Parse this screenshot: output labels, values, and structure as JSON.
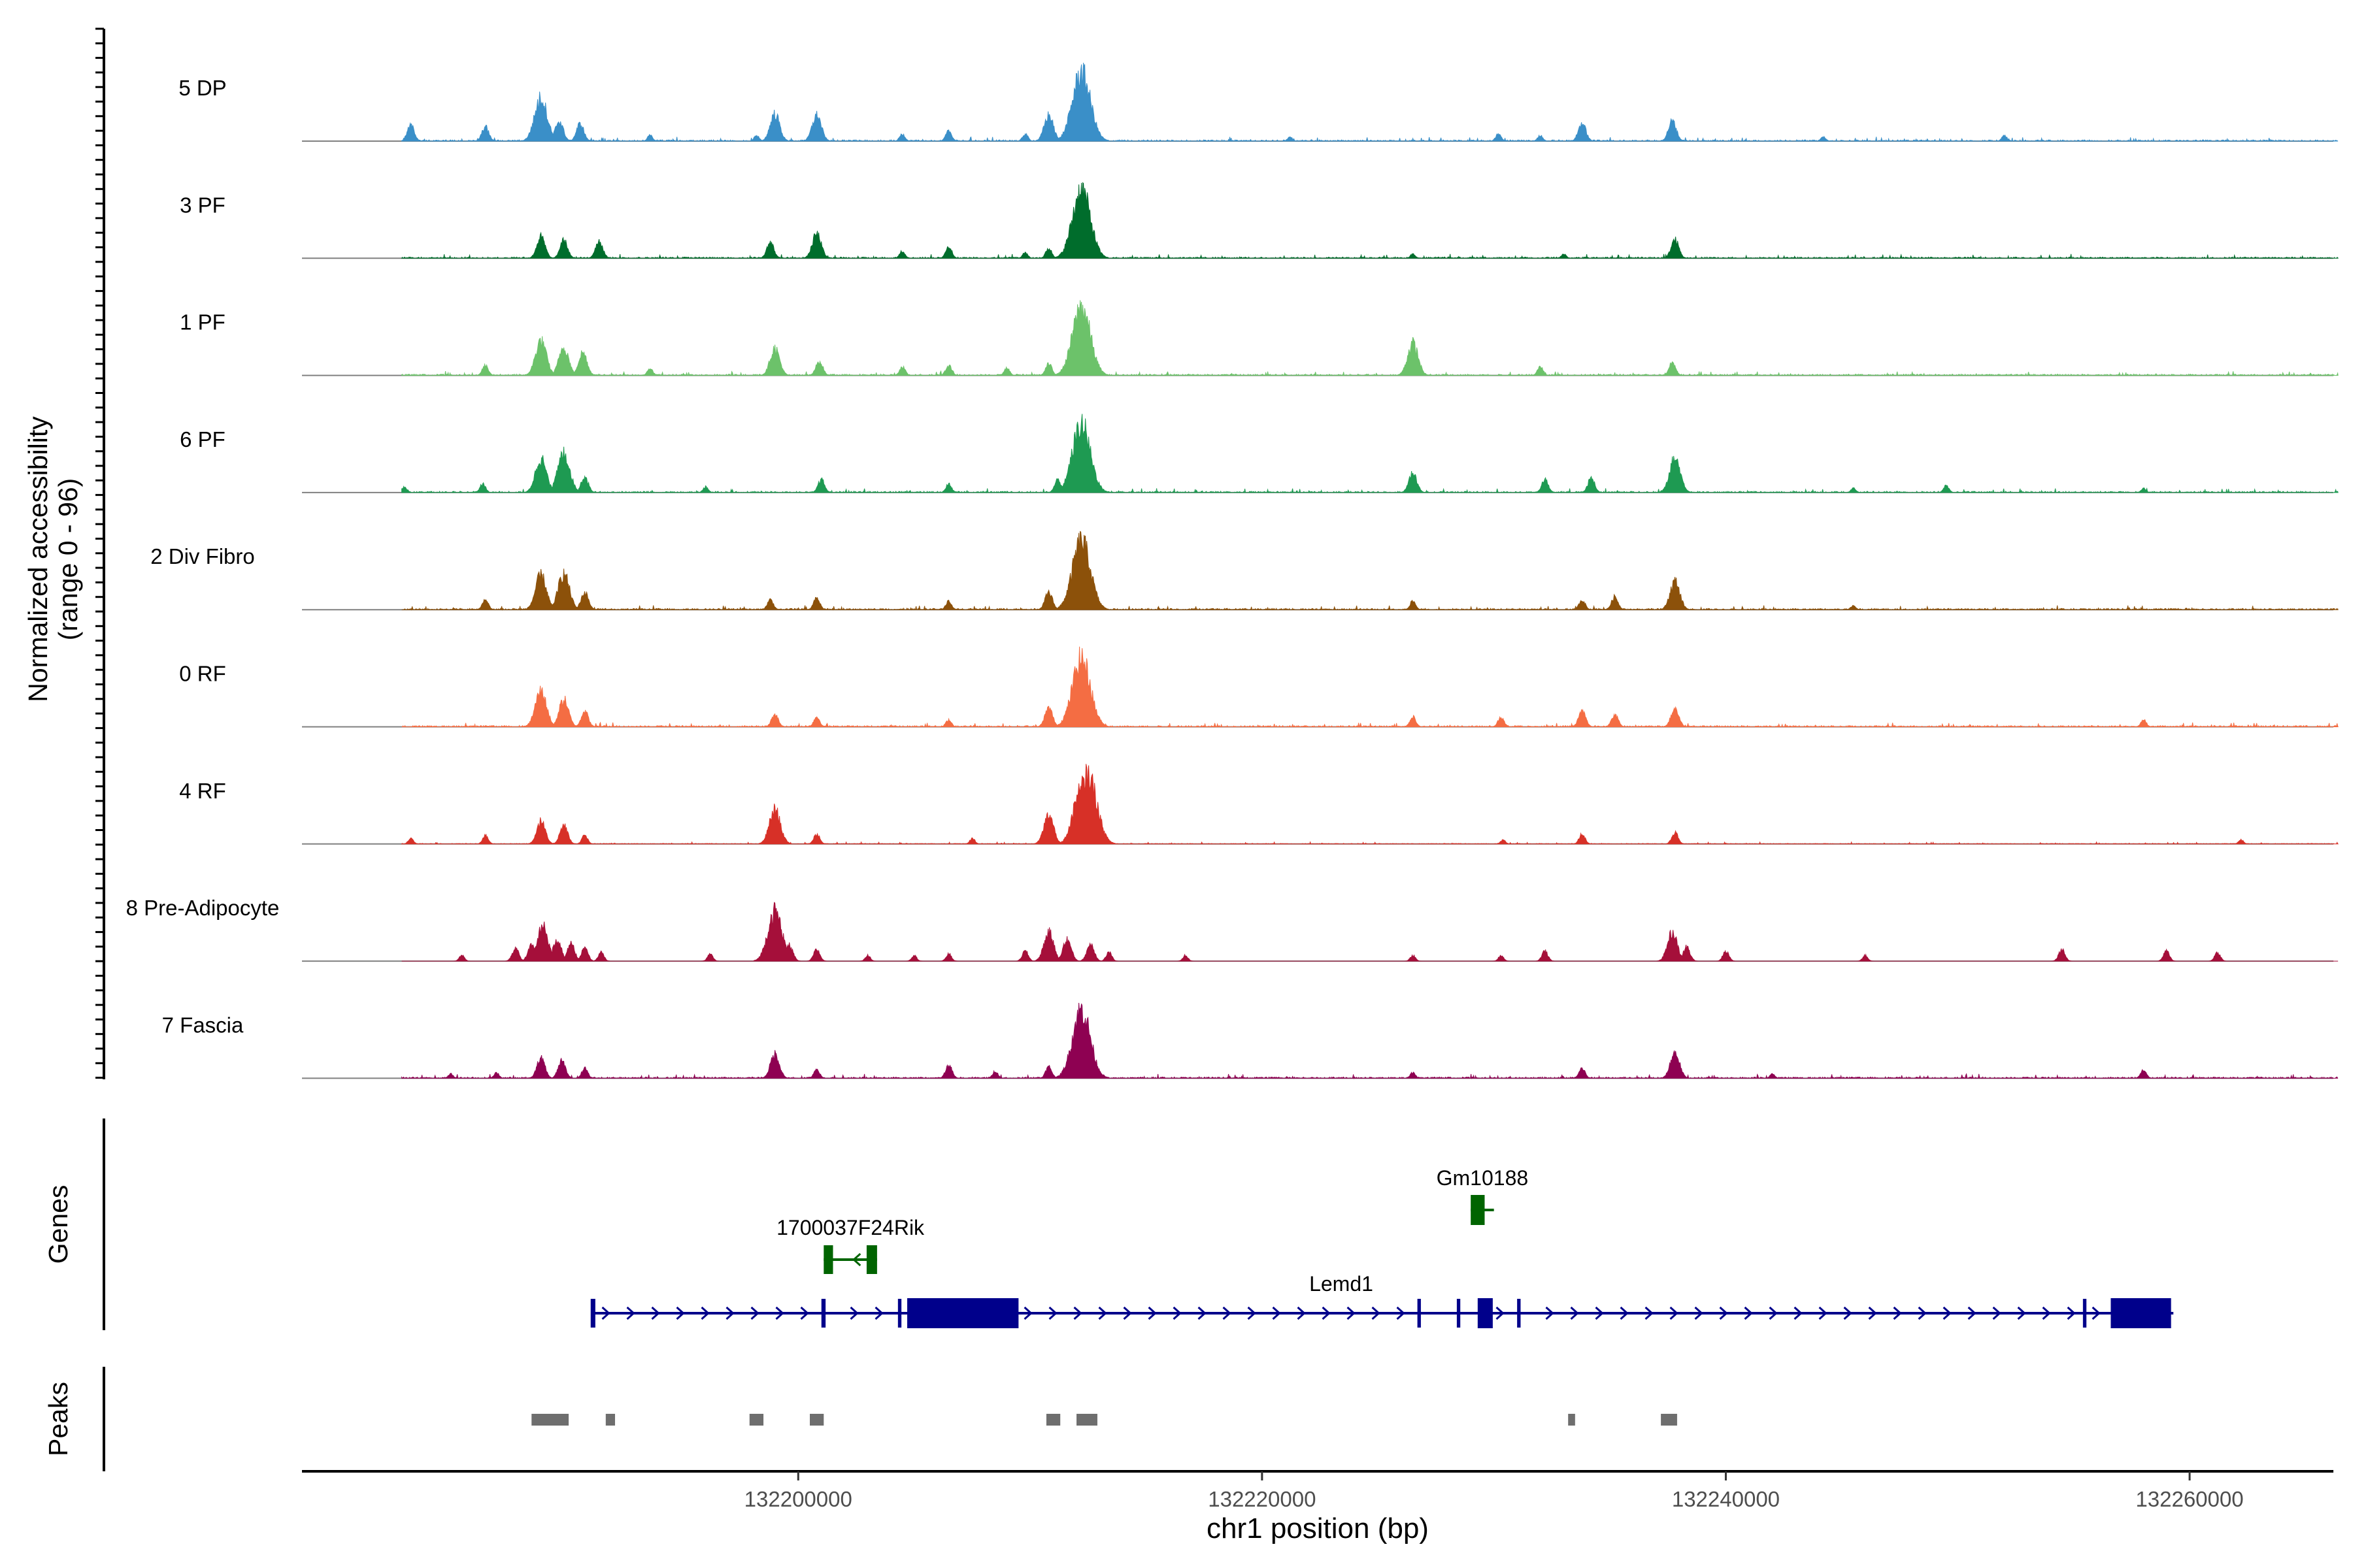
{
  "chart_data": {
    "type": "area",
    "title": "",
    "ylabel": [
      "Normalized accessibility",
      "(range 0 - 96)"
    ],
    "xlabel": "chr1 position (bp)",
    "xlim": [
      132178600,
      132266200
    ],
    "ylim": [
      0,
      96
    ],
    "x_ticks": [
      132200000,
      132220000,
      132240000,
      132260000
    ],
    "x_tick_labels": [
      "132200000",
      "132220000",
      "132240000",
      "132260000"
    ],
    "track_range": [
      132182900,
      132266400
    ],
    "tracks": [
      {
        "name": "5 DP",
        "color": "#3A8FC8",
        "density": "mid",
        "peaks": [
          [
            132183300,
            22
          ],
          [
            132186500,
            20
          ],
          [
            132188900,
            60
          ],
          [
            132189700,
            28
          ],
          [
            132190600,
            24
          ],
          [
            132193600,
            8
          ],
          [
            132198200,
            8
          ],
          [
            132199000,
            38
          ],
          [
            132200800,
            36
          ],
          [
            132204500,
            10
          ],
          [
            132206500,
            14
          ],
          [
            132209800,
            10
          ],
          [
            132210800,
            36
          ],
          [
            132212200,
            96
          ],
          [
            132221200,
            6
          ],
          [
            132230200,
            10
          ],
          [
            132232000,
            8
          ],
          [
            132233800,
            25
          ],
          [
            132237700,
            28
          ],
          [
            132244200,
            6
          ],
          [
            132252000,
            8
          ]
        ]
      },
      {
        "name": "3 PF",
        "color": "#006D2C",
        "density": "mid",
        "peaks": [
          [
            132188900,
            30
          ],
          [
            132189900,
            25
          ],
          [
            132191400,
            24
          ],
          [
            132198800,
            22
          ],
          [
            132200800,
            34
          ],
          [
            132204500,
            10
          ],
          [
            132206500,
            16
          ],
          [
            132209800,
            8
          ],
          [
            132210800,
            14
          ],
          [
            132212200,
            96
          ],
          [
            132226500,
            6
          ],
          [
            132233000,
            6
          ],
          [
            132237800,
            26
          ]
        ]
      },
      {
        "name": "1 PF",
        "color": "#6CC26A",
        "density": "mid",
        "peaks": [
          [
            132186500,
            14
          ],
          [
            132188900,
            48
          ],
          [
            132189900,
            40
          ],
          [
            132190700,
            32
          ],
          [
            132193600,
            10
          ],
          [
            132199000,
            38
          ],
          [
            132200900,
            20
          ],
          [
            132204500,
            12
          ],
          [
            132206500,
            14
          ],
          [
            132209000,
            10
          ],
          [
            132210800,
            16
          ],
          [
            132212200,
            96
          ],
          [
            132212800,
            20
          ],
          [
            132226500,
            45
          ],
          [
            132232000,
            12
          ],
          [
            132237700,
            18
          ]
        ]
      },
      {
        "name": "6 PF",
        "color": "#1E9A52",
        "density": "mid",
        "peaks": [
          [
            132183000,
            8
          ],
          [
            132186400,
            12
          ],
          [
            132188900,
            48
          ],
          [
            132189900,
            55
          ],
          [
            132190800,
            22
          ],
          [
            132196000,
            8
          ],
          [
            132201000,
            18
          ],
          [
            132206500,
            12
          ],
          [
            132211200,
            18
          ],
          [
            132212200,
            96
          ],
          [
            132226500,
            28
          ],
          [
            132232200,
            18
          ],
          [
            132234200,
            20
          ],
          [
            132237800,
            48
          ],
          [
            132245500,
            6
          ],
          [
            132249500,
            10
          ],
          [
            132258000,
            6
          ]
        ]
      },
      {
        "name": "2 Div Fibro",
        "color": "#8C510A",
        "density": "mid",
        "peaks": [
          [
            132186500,
            14
          ],
          [
            132188900,
            48
          ],
          [
            132189900,
            50
          ],
          [
            132190800,
            24
          ],
          [
            132198800,
            14
          ],
          [
            132200800,
            16
          ],
          [
            132206500,
            12
          ],
          [
            132210800,
            24
          ],
          [
            132212200,
            96
          ],
          [
            132226500,
            12
          ],
          [
            132233800,
            14
          ],
          [
            132235200,
            18
          ],
          [
            132237800,
            40
          ],
          [
            132245500,
            6
          ]
        ]
      },
      {
        "name": "0 RF",
        "color": "#F46D43",
        "density": "mid",
        "peaks": [
          [
            132188900,
            50
          ],
          [
            132189900,
            38
          ],
          [
            132190800,
            22
          ],
          [
            132199000,
            18
          ],
          [
            132200800,
            14
          ],
          [
            132206500,
            10
          ],
          [
            132210800,
            26
          ],
          [
            132212200,
            96
          ],
          [
            132226500,
            14
          ],
          [
            132230300,
            14
          ],
          [
            132233800,
            22
          ],
          [
            132235200,
            18
          ],
          [
            132237800,
            26
          ],
          [
            132258000,
            10
          ]
        ]
      },
      {
        "name": "4 RF",
        "color": "#D73027",
        "density": "sparse",
        "peaks": [
          [
            132183300,
            8
          ],
          [
            132186500,
            12
          ],
          [
            132188900,
            32
          ],
          [
            132189900,
            26
          ],
          [
            132190800,
            12
          ],
          [
            132199000,
            48
          ],
          [
            132200800,
            14
          ],
          [
            132207500,
            8
          ],
          [
            132210800,
            40
          ],
          [
            132212200,
            80
          ],
          [
            132212500,
            96
          ],
          [
            132230400,
            6
          ],
          [
            132233800,
            14
          ],
          [
            132237800,
            16
          ],
          [
            132262200,
            6
          ]
        ]
      },
      {
        "name": "8 Pre-Adipocyte",
        "color": "#A50F3A",
        "density": "none",
        "peaks": [
          [
            132185500,
            8
          ],
          [
            132187800,
            18
          ],
          [
            132188500,
            24
          ],
          [
            132189000,
            48
          ],
          [
            132189600,
            30
          ],
          [
            132190200,
            24
          ],
          [
            132190800,
            18
          ],
          [
            132191500,
            12
          ],
          [
            132196200,
            10
          ],
          [
            132199000,
            70
          ],
          [
            132199600,
            22
          ],
          [
            132200800,
            16
          ],
          [
            132203000,
            8
          ],
          [
            132205000,
            8
          ],
          [
            132206500,
            10
          ],
          [
            132209800,
            14
          ],
          [
            132210800,
            40
          ],
          [
            132211600,
            30
          ],
          [
            132212600,
            24
          ],
          [
            132213400,
            12
          ],
          [
            132216700,
            8
          ],
          [
            132226500,
            8
          ],
          [
            132230300,
            8
          ],
          [
            132232200,
            14
          ],
          [
            132237700,
            40
          ],
          [
            132238300,
            20
          ],
          [
            132240000,
            14
          ],
          [
            132246000,
            8
          ],
          [
            132254500,
            16
          ],
          [
            132259000,
            14
          ],
          [
            132261200,
            12
          ]
        ]
      },
      {
        "name": "7 Fascia",
        "color": "#8E0152",
        "density": "mid",
        "peaks": [
          [
            132185000,
            6
          ],
          [
            132187000,
            8
          ],
          [
            132188900,
            28
          ],
          [
            132189800,
            24
          ],
          [
            132190800,
            14
          ],
          [
            132199000,
            34
          ],
          [
            132200800,
            12
          ],
          [
            132206500,
            18
          ],
          [
            132208500,
            10
          ],
          [
            132210800,
            16
          ],
          [
            132212200,
            96
          ],
          [
            132226500,
            8
          ],
          [
            132233800,
            14
          ],
          [
            132237800,
            36
          ],
          [
            132242000,
            6
          ],
          [
            132258000,
            12
          ]
        ]
      }
    ],
    "genes_label": "Genes",
    "genes": [
      {
        "name": "Lemd1",
        "strand": "+",
        "color": "#00008B",
        "start": 132191100,
        "end": 132259300,
        "row": 0,
        "exons": [
          [
            132191050,
            132191250
          ],
          [
            132201000,
            132201180
          ],
          [
            132204300,
            132204450
          ],
          [
            132204700,
            132209500
          ],
          [
            132226700,
            132226850
          ],
          [
            132228400,
            132228550
          ],
          [
            132229300,
            132229950
          ],
          [
            132231000,
            132231150
          ],
          [
            132255400,
            132255550
          ],
          [
            132256600,
            132259200
          ]
        ]
      },
      {
        "name": "1700037F24Rik",
        "strand": "-",
        "color": "#006400",
        "start": 132201100,
        "end": 132203400,
        "row": 1,
        "exons": [
          [
            132201100,
            132201500
          ],
          [
            132202950,
            132203400
          ]
        ]
      },
      {
        "name": "Gm10188",
        "strand": "-",
        "color": "#006400",
        "start": 132229000,
        "end": 132230000,
        "row": 2,
        "exons": [
          [
            132229000,
            132229600
          ]
        ]
      }
    ],
    "peaks_label": "Peaks",
    "peak_regions": [
      [
        132188500,
        132190100
      ],
      [
        132191700,
        132192100
      ],
      [
        132197900,
        132198500
      ],
      [
        132200500,
        132201100
      ],
      [
        132210700,
        132211300
      ],
      [
        132212000,
        132212900
      ],
      [
        132233200,
        132233500
      ],
      [
        132237200,
        132237900
      ]
    ]
  }
}
